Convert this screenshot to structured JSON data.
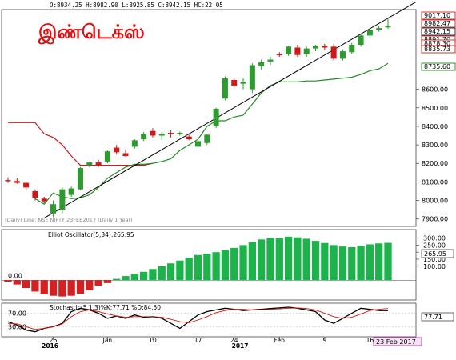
{
  "header": {
    "ohlc_readout": "O:8934.25  H:8982.90  L:8925.85  C:8942.15  HC:22.05",
    "title_tamil": "இண்டெக்ஸ்"
  },
  "price_panel": {
    "source_label": "(Daily) Line: NSE NIFTY 23FEB2017 (Daily 1 Year)",
    "right_badges": [
      {
        "label": "9017.10",
        "bg": "#ffffff",
        "border": "#cc0000",
        "color": "#000000"
      },
      {
        "label": "8982.47",
        "bg": "#ffffff",
        "border": "#cc0000",
        "color": "#000000"
      },
      {
        "label": "8942.15",
        "bg": "#ffffff",
        "border": "#000000",
        "color": "#000000"
      },
      {
        "label": "8891.70",
        "bg": "#ffffff",
        "border": "#cc0000",
        "color": "#000000"
      },
      {
        "label": "8878.30",
        "bg": "#ffffff",
        "border": "#cc0000",
        "color": "#000000"
      },
      {
        "label": "8835.73",
        "bg": "#ffffff",
        "border": "#cc0000",
        "color": "#000000"
      },
      {
        "label": "8735.60",
        "bg": "#ffffff",
        "border": "#007700",
        "color": "#000000"
      }
    ]
  },
  "oscillator_panel": {
    "label": "Elliot Oscillator(5,34):265.95",
    "zero_label": "0.00",
    "value_badge": "265.95"
  },
  "stochastic_panel": {
    "label": "Stochastic(5,1,3)%K:77.71 %D:84.50",
    "left_labels": [
      "70.00",
      "30.00"
    ],
    "value_badge": "77.71",
    "date_badge": "23 Feb 2017"
  },
  "colors": {
    "up": "#2e9b2e",
    "down": "#d01818",
    "trend_red": "#d01818",
    "trend_green": "#228b22",
    "osc_green": "#1bb34a",
    "osc_red": "#d42020",
    "stoch_k": "#000000",
    "stoch_d": "#d01818"
  },
  "chart_data": [
    {
      "type": "candlestick",
      "title": "இண்டெக்ஸ்",
      "y_ticks": [
        "8600.00",
        "8500.00",
        "8400.00",
        "8300.00",
        "8200.00",
        "8100.00",
        "8000.00",
        "7900.00"
      ],
      "ylim": [
        7860,
        9030
      ],
      "candles": [
        {
          "o": 8110,
          "h": 8125,
          "l": 8095,
          "c": 8105
        },
        {
          "o": 8105,
          "h": 8120,
          "l": 8090,
          "c": 8095
        },
        {
          "o": 8095,
          "h": 8100,
          "l": 8060,
          "c": 8070
        },
        {
          "o": 8050,
          "h": 8060,
          "l": 8000,
          "c": 8015
        },
        {
          "o": 8010,
          "h": 8020,
          "l": 7985,
          "c": 7995
        },
        {
          "o": 7930,
          "h": 8000,
          "l": 7910,
          "c": 7980
        },
        {
          "o": 7950,
          "h": 8070,
          "l": 7930,
          "c": 8060
        },
        {
          "o": 8030,
          "h": 8075,
          "l": 8020,
          "c": 8065
        },
        {
          "o": 8060,
          "h": 8180,
          "l": 8055,
          "c": 8175
        },
        {
          "o": 8190,
          "h": 8210,
          "l": 8180,
          "c": 8205
        },
        {
          "o": 8205,
          "h": 8220,
          "l": 8180,
          "c": 8190
        },
        {
          "o": 8210,
          "h": 8270,
          "l": 8200,
          "c": 8265
        },
        {
          "o": 8285,
          "h": 8300,
          "l": 8250,
          "c": 8260
        },
        {
          "o": 8255,
          "h": 8275,
          "l": 8235,
          "c": 8240
        },
        {
          "o": 8290,
          "h": 8330,
          "l": 8280,
          "c": 8325
        },
        {
          "o": 8330,
          "h": 8370,
          "l": 8320,
          "c": 8360
        },
        {
          "o": 8375,
          "h": 8390,
          "l": 8340,
          "c": 8350
        },
        {
          "o": 8350,
          "h": 8370,
          "l": 8325,
          "c": 8360
        },
        {
          "o": 8365,
          "h": 8380,
          "l": 8340,
          "c": 8360
        },
        {
          "o": 8360,
          "h": 8372,
          "l": 8350,
          "c": 8365
        },
        {
          "o": 8345,
          "h": 8355,
          "l": 8325,
          "c": 8330
        },
        {
          "o": 8290,
          "h": 8335,
          "l": 8280,
          "c": 8320
        },
        {
          "o": 8310,
          "h": 8360,
          "l": 8300,
          "c": 8355
        },
        {
          "o": 8400,
          "h": 8500,
          "l": 8390,
          "c": 8495
        },
        {
          "o": 8550,
          "h": 8670,
          "l": 8540,
          "c": 8660
        },
        {
          "o": 8650,
          "h": 8660,
          "l": 8610,
          "c": 8620
        },
        {
          "o": 8630,
          "h": 8660,
          "l": 8600,
          "c": 8640
        },
        {
          "o": 8600,
          "h": 8740,
          "l": 8580,
          "c": 8730
        },
        {
          "o": 8725,
          "h": 8760,
          "l": 8705,
          "c": 8745
        },
        {
          "o": 8750,
          "h": 8775,
          "l": 8730,
          "c": 8760
        },
        {
          "o": 8790,
          "h": 8800,
          "l": 8775,
          "c": 8785
        },
        {
          "o": 8790,
          "h": 8835,
          "l": 8780,
          "c": 8830
        },
        {
          "o": 8825,
          "h": 8840,
          "l": 8775,
          "c": 8785
        },
        {
          "o": 8790,
          "h": 8830,
          "l": 8775,
          "c": 8820
        },
        {
          "o": 8820,
          "h": 8840,
          "l": 8805,
          "c": 8835
        },
        {
          "o": 8835,
          "h": 8845,
          "l": 8810,
          "c": 8825
        },
        {
          "o": 8830,
          "h": 8845,
          "l": 8755,
          "c": 8765
        },
        {
          "o": 8765,
          "h": 8815,
          "l": 8755,
          "c": 8805
        },
        {
          "o": 8800,
          "h": 8850,
          "l": 8790,
          "c": 8840
        },
        {
          "o": 8840,
          "h": 8900,
          "l": 8830,
          "c": 8890
        },
        {
          "o": 8890,
          "h": 8930,
          "l": 8880,
          "c": 8920
        },
        {
          "o": 8920,
          "h": 8940,
          "l": 8910,
          "c": 8930
        },
        {
          "o": 8934,
          "h": 8983,
          "l": 8926,
          "c": 8942
        }
      ],
      "trend_red": [
        8420,
        8420,
        8420,
        8420,
        8360,
        8340,
        8300,
        8240,
        8190,
        8190,
        8190,
        8190,
        8190,
        8190,
        8190,
        8190,
        8200
      ],
      "trend_green": [
        8010,
        7980,
        8040,
        8020,
        8010,
        8015,
        8030,
        8070,
        8120,
        8150,
        8180,
        8195,
        8195,
        8200,
        8210,
        8225,
        8270,
        8300,
        8330,
        8400,
        8430,
        8430,
        8450,
        8460,
        8520,
        8580,
        8620,
        8640,
        8640,
        8640,
        8645,
        8645,
        8650,
        8655,
        8660,
        8665,
        8680,
        8700,
        8710,
        8740
      ],
      "support_line": [
        [
          4,
          7905
        ],
        [
          42,
          8985
        ]
      ]
    },
    {
      "type": "bar",
      "title": "Elliot Oscillator(5,34):265.95",
      "y_ticks": [
        "300.00",
        "250.00",
        "200.00",
        "150.00",
        "100.00"
      ],
      "ylim": [
        -140,
        360
      ],
      "values": [
        -10,
        -30,
        -55,
        -80,
        -100,
        -110,
        -115,
        -110,
        -95,
        -70,
        -40,
        -20,
        10,
        30,
        45,
        60,
        80,
        100,
        120,
        140,
        160,
        180,
        190,
        200,
        215,
        230,
        250,
        270,
        290,
        300,
        300,
        310,
        305,
        295,
        280,
        265,
        250,
        240,
        235,
        245,
        255,
        262,
        266
      ]
    },
    {
      "type": "line",
      "title": "Stochastic(5,1,3)%K:77.71 %D:84.50",
      "ylim": [
        0,
        100
      ],
      "series": [
        {
          "name": "%K",
          "values": [
            45,
            35,
            20,
            15,
            25,
            30,
            40,
            75,
            85,
            80,
            70,
            55,
            62,
            55,
            65,
            58,
            60,
            55,
            40,
            25,
            45,
            65,
            75,
            80,
            85,
            82,
            78,
            80,
            82,
            84,
            86,
            88,
            85,
            80,
            75,
            50,
            40,
            55,
            70,
            85,
            82,
            78,
            78
          ]
        },
        {
          "name": "%D",
          "values": [
            40,
            38,
            30,
            22,
            25,
            30,
            38,
            60,
            75,
            80,
            75,
            68,
            62,
            58,
            60,
            60,
            60,
            58,
            52,
            45,
            42,
            50,
            60,
            72,
            78,
            82,
            82,
            80,
            80,
            82,
            83,
            85,
            86,
            84,
            80,
            70,
            60,
            55,
            58,
            68,
            78,
            82,
            84
          ]
        }
      ],
      "x_ticks": [
        {
          "i": 5,
          "label": "26"
        },
        {
          "i": 11,
          "label": "Jan"
        },
        {
          "i": 16,
          "label": "10"
        },
        {
          "i": 21,
          "label": "17"
        },
        {
          "i": 25,
          "label": "24"
        },
        {
          "i": 30,
          "label": "Feb"
        },
        {
          "i": 35,
          "label": "9"
        },
        {
          "i": 40,
          "label": "16"
        }
      ],
      "x_year_labels": [
        {
          "i": 5,
          "label": "2016"
        },
        {
          "i": 26,
          "label": "2017"
        }
      ]
    }
  ]
}
